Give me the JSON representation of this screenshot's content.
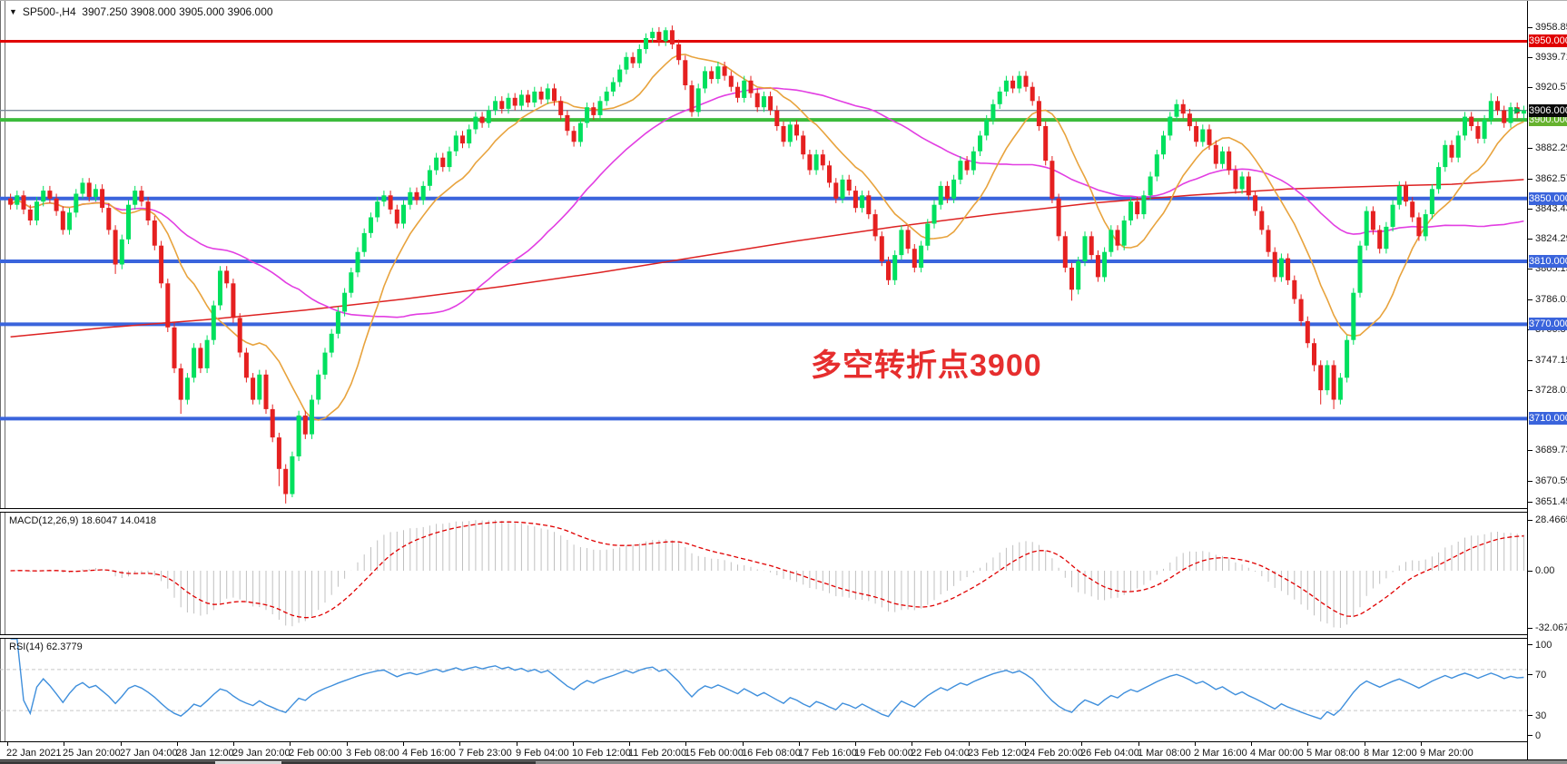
{
  "header": {
    "symbol": "SP500-,H4",
    "open": "3907.250",
    "high": "3908.000",
    "low": "3905.000",
    "close": "3906.000"
  },
  "annotation": {
    "text": "多空转折点3900"
  },
  "colors": {
    "candle_up": "#00e05e",
    "candle_down": "#e52020",
    "ma_fast": "#e8a33d",
    "ma_mid": "#e23ee2",
    "ma_slow": "#dd2222",
    "price_line": "#7a8a99",
    "price_badge": "#0a0a0a",
    "macd_hist": "#c0c0c0",
    "macd_signal": "#e00000",
    "rsi_line": "#3f8fdc",
    "rsi_levels": "#c8c8c8",
    "axis_text": "#1a1a1a"
  },
  "hlines": [
    {
      "price": 3950,
      "label": "3950.000",
      "color": "#e00000",
      "badge": "#e00000",
      "width": 3
    },
    {
      "price": 3900,
      "label": "3900.000",
      "color": "#3cbb3c",
      "badge": "#66b22e",
      "width": 4
    },
    {
      "price": 3850,
      "label": "3850.000",
      "color": "#3a64dc",
      "badge": "#3a64dc",
      "width": 4
    },
    {
      "price": 3810,
      "label": "3810.000",
      "color": "#3a64dc",
      "badge": "#3a64dc",
      "width": 4
    },
    {
      "price": 3770,
      "label": "3770.000",
      "color": "#3a64dc",
      "badge": "#3a64dc",
      "width": 4
    },
    {
      "price": 3710,
      "label": "3710.000",
      "color": "#3a64dc",
      "badge": "#3a64dc",
      "width": 4
    }
  ],
  "current_price": {
    "value": 3906.0,
    "label": "3906.000"
  },
  "price_axis_ticks": [
    {
      "label": "3958.850",
      "price": 3958.85
    },
    {
      "label": "3939.710",
      "price": 3939.71
    },
    {
      "label": "3920.570",
      "price": 3920.57
    },
    {
      "label": "3882.290",
      "price": 3882.29
    },
    {
      "label": "3862.570",
      "price": 3862.57
    },
    {
      "label": "3843.430",
      "price": 3843.43
    },
    {
      "label": "3824.290",
      "price": 3824.29
    },
    {
      "label": "3805.150",
      "price": 3805.15
    },
    {
      "label": "3786.010",
      "price": 3786.01
    },
    {
      "label": "3766.870",
      "price": 3766.87
    },
    {
      "label": "3747.150",
      "price": 3747.15
    },
    {
      "label": "3728.010",
      "price": 3728.01
    },
    {
      "label": "3689.730",
      "price": 3689.73
    },
    {
      "label": "3670.590",
      "price": 3670.59
    },
    {
      "label": "3651.450",
      "price": 3651.45
    }
  ],
  "date_axis": [
    "22 Jan 2021",
    "25 Jan 20:00",
    "27 Jan 04:00",
    "28 Jan 12:00",
    "29 Jan 20:00",
    "2 Feb 00:00",
    "3 Feb 08:00",
    "4 Feb 16:00",
    "7 Feb 23:00",
    "9 Feb 04:00",
    "10 Feb 12:00",
    "11 Feb 20:00",
    "15 Feb 00:00",
    "16 Feb 08:00",
    "17 Feb 16:00",
    "19 Feb 00:00",
    "22 Feb 04:00",
    "23 Feb 12:00",
    "24 Feb 20:00",
    "26 Feb 04:00",
    "1 Mar 08:00",
    "2 Mar 16:00",
    "4 Mar 00:00",
    "5 Mar 08:00",
    "8 Mar 12:00",
    "9 Mar 20:00"
  ],
  "panels": {
    "macd": {
      "label": "MACD(12,26,9) 18.6047 14.0418",
      "axis": [
        "28.4665",
        "0.00",
        "-32.067"
      ]
    },
    "rsi": {
      "label": "RSI(14) 62.3779",
      "axis": [
        "100",
        "70",
        "30",
        "0"
      ]
    }
  },
  "chart_data": {
    "type": "candlestick",
    "symbol": "SP500-",
    "timeframe": "H4",
    "title": "SP500-,H4 3907.250 3908.000 3905.000 3906.000",
    "ylim": [
      3651.45,
      3967.0
    ],
    "x_range": [
      "22 Jan 2021",
      "10 Mar 2021"
    ],
    "grid": false,
    "current_price": 3906.0,
    "first_open": 3850,
    "default_wick": 3,
    "closes": [
      3846,
      3852,
      3843,
      3836,
      3848,
      3855,
      3850,
      3842,
      3830,
      3841,
      3853,
      3860,
      3851,
      3856,
      3844,
      3830,
      3808,
      3824,
      3846,
      3855,
      3848,
      3836,
      3820,
      3796,
      3768,
      3742,
      3722,
      3736,
      3755,
      3742,
      3760,
      3782,
      3804,
      3796,
      3774,
      3752,
      3736,
      3722,
      3738,
      3716,
      3698,
      3678,
      3662,
      3686,
      3712,
      3700,
      3722,
      3738,
      3752,
      3764,
      3778,
      3790,
      3803,
      3816,
      3828,
      3838,
      3848,
      3852,
      3843,
      3834,
      3846,
      3854,
      3849,
      3858,
      3868,
      3876,
      3870,
      3880,
      3890,
      3885,
      3894,
      3902,
      3898,
      3906,
      3912,
      3907,
      3914,
      3909,
      3916,
      3911,
      3918,
      3913,
      3920,
      3912,
      3903,
      3893,
      3886,
      3898,
      3908,
      3903,
      3912,
      3918,
      3924,
      3932,
      3940,
      3936,
      3945,
      3952,
      3956,
      3950,
      3957,
      3948,
      3938,
      3922,
      3905,
      3920,
      3931,
      3926,
      3934,
      3928,
      3921,
      3914,
      3925,
      3917,
      3908,
      3915,
      3906,
      3896,
      3886,
      3897,
      3890,
      3878,
      3868,
      3878,
      3871,
      3860,
      3850,
      3862,
      3855,
      3844,
      3852,
      3840,
      3826,
      3810,
      3798,
      3814,
      3830,
      3818,
      3806,
      3820,
      3834,
      3846,
      3858,
      3850,
      3862,
      3874,
      3868,
      3880,
      3890,
      3900,
      3910,
      3918,
      3925,
      3920,
      3928,
      3921,
      3912,
      3896,
      3874,
      3850,
      3826,
      3806,
      3792,
      3810,
      3826,
      3814,
      3800,
      3816,
      3830,
      3820,
      3836,
      3848,
      3840,
      3852,
      3864,
      3878,
      3890,
      3902,
      3910,
      3904,
      3896,
      3886,
      3894,
      3884,
      3872,
      3880,
      3868,
      3856,
      3864,
      3852,
      3842,
      3830,
      3816,
      3800,
      3812,
      3798,
      3786,
      3772,
      3758,
      3744,
      3728,
      3744,
      3722,
      3736,
      3760,
      3790,
      3820,
      3842,
      3830,
      3818,
      3832,
      3846,
      3858,
      3848,
      3838,
      3826,
      3840,
      3856,
      3870,
      3884,
      3876,
      3890,
      3902,
      3896,
      3888,
      3900,
      3912,
      3906,
      3898,
      3908,
      3904,
      3906
    ],
    "wick_overrides": {
      "16": {
        "low": 3802
      },
      "26": {
        "low": 3713
      },
      "41": {
        "low": 3667
      },
      "42": {
        "low": 3656
      },
      "43": {
        "low": 3660
      },
      "98": {
        "high": 3958.5
      },
      "100": {
        "high": 3958.85
      },
      "154": {
        "high": 3931
      },
      "162": {
        "low": 3785
      },
      "199": {
        "low": 3740
      },
      "200": {
        "low": 3719
      },
      "202": {
        "low": 3716
      },
      "226": {
        "high": 3917
      },
      "231": {
        "high": 3909,
        "low": 3900
      }
    },
    "ma_fast_period": 12,
    "ma_mid_period": 45,
    "ma_slow_anchors": [
      [
        0,
        3762
      ],
      [
        15,
        3768
      ],
      [
        30,
        3773
      ],
      [
        45,
        3779
      ],
      [
        60,
        3786
      ],
      [
        75,
        3794
      ],
      [
        90,
        3803
      ],
      [
        105,
        3813
      ],
      [
        120,
        3823
      ],
      [
        135,
        3832
      ],
      [
        150,
        3840
      ],
      [
        165,
        3847
      ],
      [
        180,
        3852
      ],
      [
        195,
        3856
      ],
      [
        210,
        3858
      ],
      [
        220,
        3859
      ],
      [
        231,
        3862
      ]
    ],
    "indicators": {
      "macd": {
        "params": [
          12,
          26,
          9
        ],
        "macd_value": 18.6047,
        "signal_value": 14.0418,
        "axis_max": 28.4665,
        "axis_min": -32.067
      },
      "rsi": {
        "period": 14,
        "value": 62.3779,
        "levels": [
          70,
          30
        ],
        "axis": [
          100,
          70,
          30,
          0
        ]
      }
    }
  }
}
